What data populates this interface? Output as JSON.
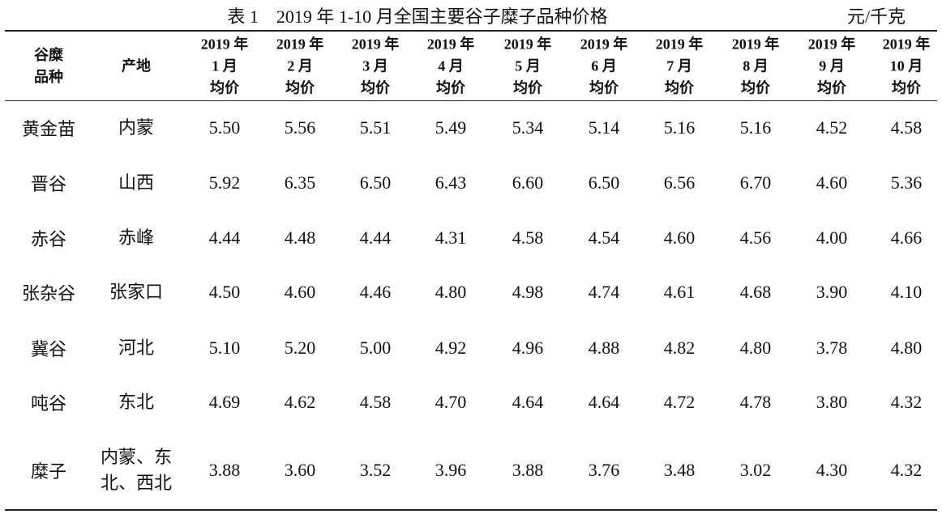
{
  "header": {
    "title": "表 1　2019 年 1-10 月全国主要谷子糜子品种价格",
    "unit": "元/千克"
  },
  "table": {
    "columns": [
      {
        "lines": [
          "谷糜",
          "品种"
        ]
      },
      {
        "lines": [
          "产地"
        ]
      },
      {
        "lines": [
          "2019 年",
          "1 月",
          "均价"
        ]
      },
      {
        "lines": [
          "2019 年",
          "2 月",
          "均价"
        ]
      },
      {
        "lines": [
          "2019 年",
          "3 月",
          "均价"
        ]
      },
      {
        "lines": [
          "2019 年",
          "4 月",
          "均价"
        ]
      },
      {
        "lines": [
          "2019 年",
          "5 月",
          "均价"
        ]
      },
      {
        "lines": [
          "2019 年",
          "6 月",
          "均价"
        ]
      },
      {
        "lines": [
          "2019 年",
          "7 月",
          "均价"
        ]
      },
      {
        "lines": [
          "2019 年",
          "8 月",
          "均价"
        ]
      },
      {
        "lines": [
          "2019 年",
          "9 月",
          "均价"
        ]
      },
      {
        "lines": [
          "2019 年",
          "10 月",
          "均价"
        ]
      }
    ],
    "rows": [
      {
        "variety": "黄金苗",
        "origin": [
          "内蒙"
        ],
        "prices": [
          "5.50",
          "5.56",
          "5.51",
          "5.49",
          "5.34",
          "5.14",
          "5.16",
          "5.16",
          "4.52",
          "4.58"
        ]
      },
      {
        "variety": "晋谷",
        "origin": [
          "山西"
        ],
        "prices": [
          "5.92",
          "6.35",
          "6.50",
          "6.43",
          "6.60",
          "6.50",
          "6.56",
          "6.70",
          "4.60",
          "5.36"
        ]
      },
      {
        "variety": "赤谷",
        "origin": [
          "赤峰"
        ],
        "prices": [
          "4.44",
          "4.48",
          "4.44",
          "4.31",
          "4.58",
          "4.54",
          "4.60",
          "4.56",
          "4.00",
          "4.66"
        ]
      },
      {
        "variety": "张杂谷",
        "origin": [
          "张家口"
        ],
        "prices": [
          "4.50",
          "4.60",
          "4.46",
          "4.80",
          "4.98",
          "4.74",
          "4.61",
          "4.68",
          "3.90",
          "4.10"
        ]
      },
      {
        "variety": "冀谷",
        "origin": [
          "河北"
        ],
        "prices": [
          "5.10",
          "5.20",
          "5.00",
          "4.92",
          "4.96",
          "4.88",
          "4.82",
          "4.80",
          "3.78",
          "4.80"
        ]
      },
      {
        "variety": "吨谷",
        "origin": [
          "东北"
        ],
        "prices": [
          "4.69",
          "4.62",
          "4.58",
          "4.70",
          "4.64",
          "4.64",
          "4.72",
          "4.78",
          "3.80",
          "4.32"
        ]
      },
      {
        "variety": "糜子",
        "origin": [
          "内蒙、东",
          "北、西北"
        ],
        "prices": [
          "3.88",
          "3.60",
          "3.52",
          "3.96",
          "3.88",
          "3.76",
          "3.48",
          "3.02",
          "4.30",
          "4.32"
        ]
      }
    ]
  }
}
